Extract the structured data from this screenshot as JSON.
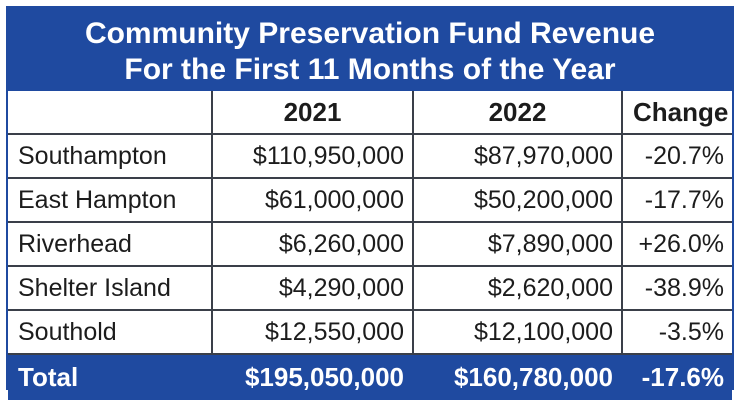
{
  "title": {
    "line1": "Community Preservation Fund Revenue",
    "line2": "For the First 11 Months of the Year"
  },
  "columns": [
    "",
    "2021",
    "2022",
    "Change"
  ],
  "rows": [
    {
      "name": "Southampton",
      "y2021": "$110,950,000",
      "y2022": "$87,970,000",
      "change": "-20.7%"
    },
    {
      "name": "East Hampton",
      "y2021": "$61,000,000",
      "y2022": "$50,200,000",
      "change": "-17.7%"
    },
    {
      "name": "Riverhead",
      "y2021": "$6,260,000",
      "y2022": "$7,890,000",
      "change": "+26.0%"
    },
    {
      "name": "Shelter Island",
      "y2021": "$4,290,000",
      "y2022": "$2,620,000",
      "change": "-38.9%"
    },
    {
      "name": "Southold",
      "y2021": "$12,550,000",
      "y2022": "$12,100,000",
      "change": "-3.5%"
    }
  ],
  "total": {
    "name": "Total",
    "y2021": "$195,050,000",
    "y2022": "$160,780,000",
    "change": "-17.6%"
  },
  "colors": {
    "header_bg": "#1f4aa0",
    "header_text": "#ffffff",
    "border": "#3a3f49"
  }
}
